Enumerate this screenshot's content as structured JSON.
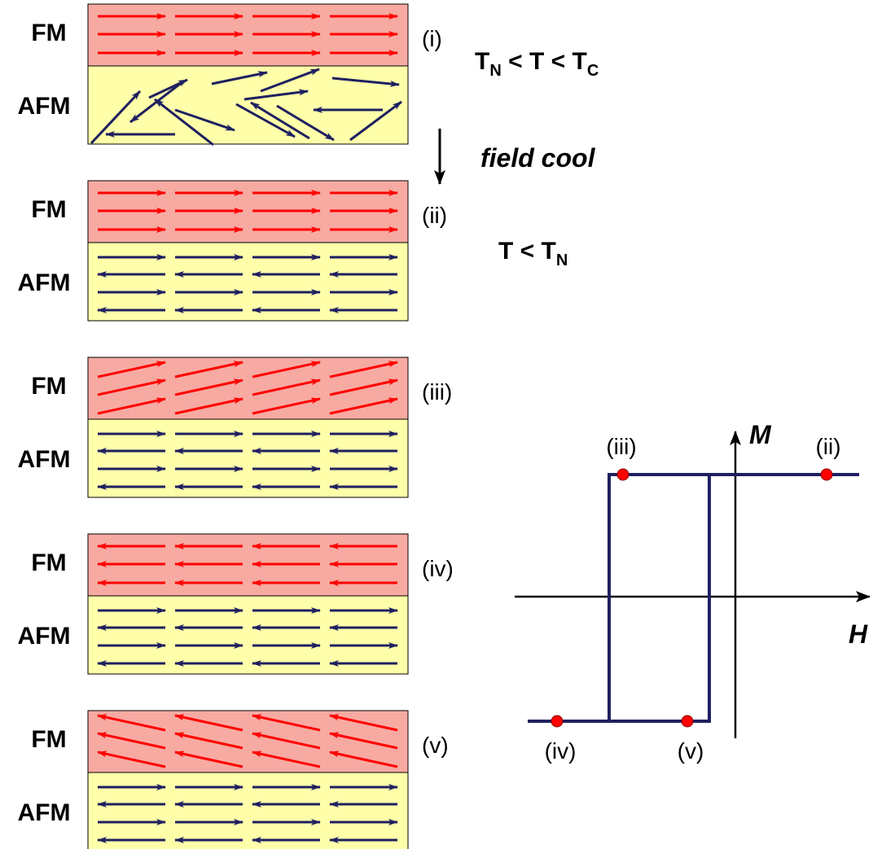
{
  "panels": [
    {
      "fm": "FM",
      "afm": "AFM",
      "label": "(i)"
    },
    {
      "fm": "FM",
      "afm": "AFM",
      "label": "(ii)"
    },
    {
      "fm": "FM",
      "afm": "AFM",
      "label": "(iii)"
    },
    {
      "fm": "FM",
      "afm": "AFM",
      "label": "(iv)"
    },
    {
      "fm": "FM",
      "afm": "AFM",
      "label": "(v)"
    }
  ],
  "conditions": [
    {
      "t1": "T",
      "s1": "N",
      "t2": " < T < T",
      "s2": "C"
    },
    {
      "t1": "T < T",
      "s1": "N"
    }
  ],
  "process": "field cool",
  "loop": {
    "y_axis": "M",
    "x_axis": "H",
    "points": [
      "(iii)",
      "(ii)",
      "(iv)",
      "(v)"
    ]
  }
}
